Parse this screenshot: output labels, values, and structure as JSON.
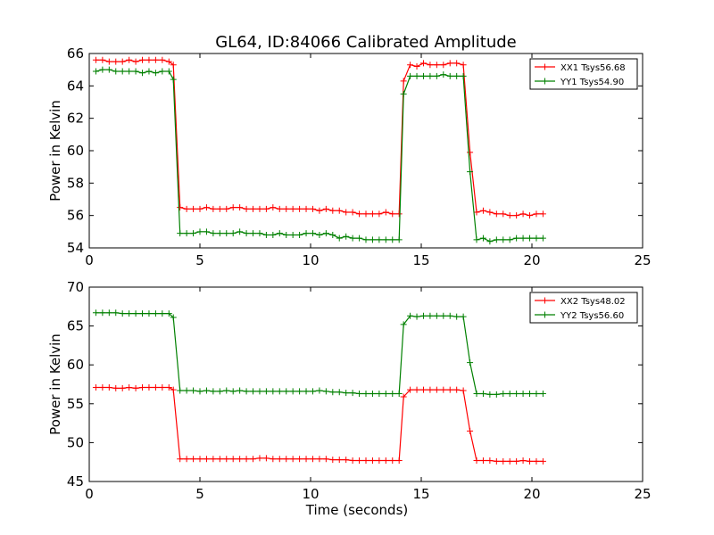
{
  "title": "GL64, ID:84066 Calibrated Amplitude",
  "chart_data": [
    {
      "type": "line",
      "xlabel": "",
      "ylabel": "Power in Kelvin",
      "xlim": [
        0,
        25
      ],
      "ylim": [
        54,
        66
      ],
      "xticks": [
        "0",
        "5",
        "10",
        "15",
        "20",
        "25"
      ],
      "yticks": [
        "54",
        "56",
        "58",
        "60",
        "62",
        "64",
        "66"
      ],
      "grid": false,
      "legend_position": "top-right",
      "x": [
        0.3,
        0.6,
        0.9,
        1.2,
        1.5,
        1.8,
        2.1,
        2.4,
        2.7,
        3.0,
        3.3,
        3.6,
        3.8,
        4.1,
        4.4,
        4.7,
        5.0,
        5.3,
        5.6,
        5.9,
        6.2,
        6.5,
        6.8,
        7.1,
        7.4,
        7.7,
        8.0,
        8.3,
        8.6,
        8.9,
        9.2,
        9.5,
        9.8,
        10.1,
        10.4,
        10.7,
        11.0,
        11.3,
        11.6,
        11.9,
        12.2,
        12.5,
        12.8,
        13.1,
        13.4,
        13.7,
        14.0,
        14.2,
        14.5,
        14.8,
        15.1,
        15.4,
        15.7,
        16.0,
        16.3,
        16.6,
        16.9,
        17.2,
        17.5,
        17.8,
        18.1,
        18.4,
        18.7,
        19.0,
        19.3,
        19.6,
        19.9,
        20.2,
        20.5
      ],
      "series": [
        {
          "name": "XX1 Tsys56.68",
          "color": "#ff0000",
          "values": [
            65.6,
            65.6,
            65.5,
            65.5,
            65.5,
            65.6,
            65.5,
            65.6,
            65.6,
            65.6,
            65.6,
            65.5,
            65.3,
            56.5,
            56.4,
            56.4,
            56.4,
            56.5,
            56.4,
            56.4,
            56.4,
            56.5,
            56.5,
            56.4,
            56.4,
            56.4,
            56.4,
            56.5,
            56.4,
            56.4,
            56.4,
            56.4,
            56.4,
            56.4,
            56.3,
            56.4,
            56.3,
            56.3,
            56.2,
            56.2,
            56.1,
            56.1,
            56.1,
            56.1,
            56.2,
            56.1,
            56.1,
            64.3,
            65.3,
            65.2,
            65.4,
            65.3,
            65.3,
            65.3,
            65.4,
            65.4,
            65.3,
            59.9,
            56.2,
            56.3,
            56.2,
            56.1,
            56.1,
            56.0,
            56.0,
            56.1,
            56.0,
            56.1,
            56.1
          ]
        },
        {
          "name": "YY1 Tsys54.90",
          "color": "#008000",
          "values": [
            64.9,
            65.0,
            65.0,
            64.9,
            64.9,
            64.9,
            64.9,
            64.8,
            64.9,
            64.8,
            64.9,
            64.9,
            64.4,
            54.9,
            54.9,
            54.9,
            55.0,
            55.0,
            54.9,
            54.9,
            54.9,
            54.9,
            55.0,
            54.9,
            54.9,
            54.9,
            54.8,
            54.8,
            54.9,
            54.8,
            54.8,
            54.8,
            54.9,
            54.9,
            54.8,
            54.9,
            54.8,
            54.6,
            54.7,
            54.6,
            54.6,
            54.5,
            54.5,
            54.5,
            54.5,
            54.5,
            54.5,
            63.5,
            64.6,
            64.6,
            64.6,
            64.6,
            64.6,
            64.7,
            64.6,
            64.6,
            64.6,
            58.7,
            54.5,
            54.6,
            54.4,
            54.5,
            54.5,
            54.5,
            54.6,
            54.6,
            54.6,
            54.6,
            54.6
          ]
        }
      ]
    },
    {
      "type": "line",
      "xlabel": "Time (seconds)",
      "ylabel": "Power in Kelvin",
      "xlim": [
        0,
        25
      ],
      "ylim": [
        45,
        70
      ],
      "xticks": [
        "0",
        "5",
        "10",
        "15",
        "20",
        "25"
      ],
      "yticks": [
        "45",
        "50",
        "55",
        "60",
        "65",
        "70"
      ],
      "grid": false,
      "legend_position": "top-right",
      "x": [
        0.3,
        0.6,
        0.9,
        1.2,
        1.5,
        1.8,
        2.1,
        2.4,
        2.7,
        3.0,
        3.3,
        3.6,
        3.8,
        4.1,
        4.4,
        4.7,
        5.0,
        5.3,
        5.6,
        5.9,
        6.2,
        6.5,
        6.8,
        7.1,
        7.4,
        7.7,
        8.0,
        8.3,
        8.6,
        8.9,
        9.2,
        9.5,
        9.8,
        10.1,
        10.4,
        10.7,
        11.0,
        11.3,
        11.6,
        11.9,
        12.2,
        12.5,
        12.8,
        13.1,
        13.4,
        13.7,
        14.0,
        14.2,
        14.5,
        14.8,
        15.1,
        15.4,
        15.7,
        16.0,
        16.3,
        16.6,
        16.9,
        17.2,
        17.5,
        17.8,
        18.1,
        18.4,
        18.7,
        19.0,
        19.3,
        19.6,
        19.9,
        20.2,
        20.5
      ],
      "series": [
        {
          "name": "XX2 Tsys48.02",
          "color": "#ff0000",
          "values": [
            57.1,
            57.1,
            57.1,
            57.0,
            57.0,
            57.1,
            57.0,
            57.1,
            57.1,
            57.1,
            57.1,
            57.1,
            56.8,
            47.9,
            47.9,
            47.9,
            47.9,
            47.9,
            47.9,
            47.9,
            47.9,
            47.9,
            47.9,
            47.9,
            47.9,
            48.0,
            48.0,
            47.9,
            47.9,
            47.9,
            47.9,
            47.9,
            47.9,
            47.9,
            47.9,
            47.9,
            47.8,
            47.8,
            47.8,
            47.7,
            47.7,
            47.7,
            47.7,
            47.7,
            47.7,
            47.7,
            47.7,
            55.9,
            56.8,
            56.8,
            56.8,
            56.8,
            56.8,
            56.8,
            56.8,
            56.8,
            56.7,
            51.5,
            47.7,
            47.7,
            47.7,
            47.6,
            47.6,
            47.6,
            47.6,
            47.7,
            47.6,
            47.6,
            47.6
          ]
        },
        {
          "name": "YY2 Tsys56.60",
          "color": "#008000",
          "values": [
            66.7,
            66.7,
            66.7,
            66.7,
            66.6,
            66.6,
            66.6,
            66.6,
            66.6,
            66.6,
            66.6,
            66.6,
            66.1,
            56.7,
            56.7,
            56.7,
            56.6,
            56.7,
            56.6,
            56.6,
            56.7,
            56.6,
            56.7,
            56.6,
            56.6,
            56.6,
            56.6,
            56.6,
            56.6,
            56.6,
            56.6,
            56.6,
            56.6,
            56.6,
            56.7,
            56.6,
            56.5,
            56.5,
            56.4,
            56.4,
            56.3,
            56.3,
            56.3,
            56.3,
            56.3,
            56.3,
            56.3,
            65.2,
            66.3,
            66.2,
            66.3,
            66.3,
            66.3,
            66.3,
            66.3,
            66.2,
            66.2,
            60.3,
            56.3,
            56.3,
            56.2,
            56.2,
            56.3,
            56.3,
            56.3,
            56.3,
            56.3,
            56.3,
            56.3
          ]
        }
      ]
    }
  ]
}
